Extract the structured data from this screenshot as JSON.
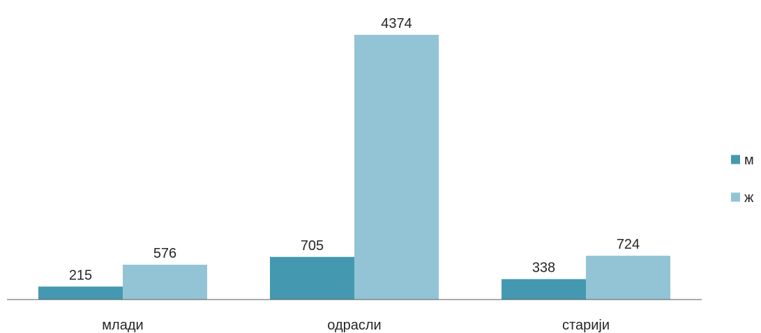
{
  "chart_data": {
    "type": "bar",
    "categories": [
      "млади",
      "одрасли",
      "старији"
    ],
    "series": [
      {
        "name": "м",
        "values": [
          215,
          705,
          338
        ],
        "color": "#4499B0"
      },
      {
        "name": "ж",
        "values": [
          576,
          4374,
          724
        ],
        "color": "#93C4D6"
      }
    ],
    "ylim": [
      0,
      4374
    ],
    "grid": false,
    "legend": "right",
    "data_labels": true
  }
}
